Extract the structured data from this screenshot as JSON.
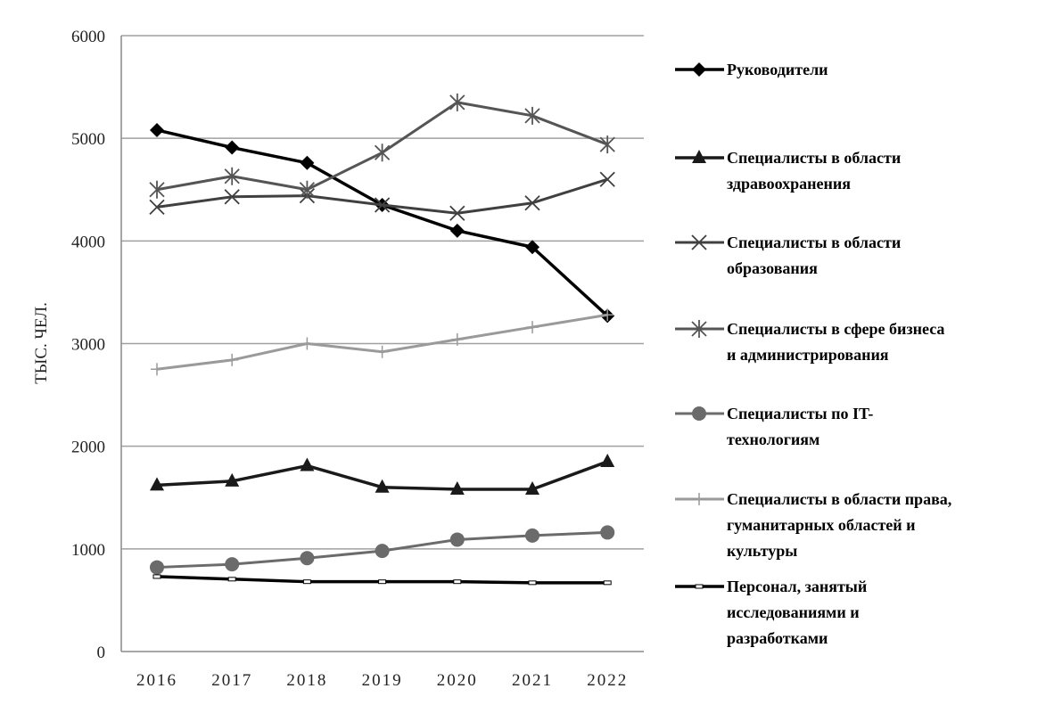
{
  "chart_data": {
    "type": "line",
    "title": "",
    "xlabel": "",
    "ylabel": "ТЫС. ЧЕЛ.",
    "ylim": [
      0,
      6000
    ],
    "yticks": [
      0,
      1000,
      2000,
      3000,
      4000,
      5000,
      6000
    ],
    "grid": true,
    "legend_position": "right",
    "x": [
      "2016",
      "2017",
      "2018",
      "2019",
      "2020",
      "2021",
      "2022"
    ],
    "series": [
      {
        "name": "Руководители",
        "legend_lines": [
          "Руководители"
        ],
        "marker": "diamond",
        "color": "#000000",
        "values": [
          5080,
          4910,
          4760,
          4350,
          4100,
          3940,
          3270
        ]
      },
      {
        "name": "Специалисты в области здравоохранения",
        "legend_lines": [
          "Специалисты в области",
          "здравоохранения"
        ],
        "marker": "triangle",
        "color": "#1a1a1a",
        "values": [
          1620,
          1660,
          1810,
          1600,
          1580,
          1580,
          1850
        ]
      },
      {
        "name": "Специалисты в области образования",
        "legend_lines": [
          "Специалисты в области",
          "образования"
        ],
        "marker": "x",
        "color": "#404040",
        "values": [
          4330,
          4430,
          4440,
          4350,
          4270,
          4370,
          4600
        ]
      },
      {
        "name": "Специалисты в сфере бизнеса и администрирования",
        "legend_lines": [
          "Специалисты в сфере бизнеса",
          "и администрирования"
        ],
        "marker": "asterisk",
        "color": "#555555",
        "values": [
          4500,
          4630,
          4500,
          4860,
          5350,
          5220,
          4940
        ]
      },
      {
        "name": "Специалисты по IT-технологиям",
        "legend_lines": [
          "Специалисты по IT-",
          "технологиям"
        ],
        "marker": "circle",
        "color": "#6b6b6b",
        "values": [
          820,
          850,
          910,
          980,
          1090,
          1130,
          1160
        ]
      },
      {
        "name": "Специалисты в области права, гуманитарных областей и культуры",
        "legend_lines": [
          "Специалисты в области права,",
          "гуманитарных областей и",
          "культуры"
        ],
        "marker": "plus",
        "color": "#9a9a9a",
        "values": [
          2750,
          2840,
          3000,
          2920,
          3040,
          3160,
          3280
        ]
      },
      {
        "name": "Персонал, занятый исследованиями и разработками",
        "legend_lines": [
          "Персонал, занятый",
          "исследованиями и",
          "разработками"
        ],
        "marker": "dash",
        "color": "#000000",
        "values": [
          730,
          705,
          680,
          680,
          680,
          670,
          670
        ]
      }
    ]
  }
}
